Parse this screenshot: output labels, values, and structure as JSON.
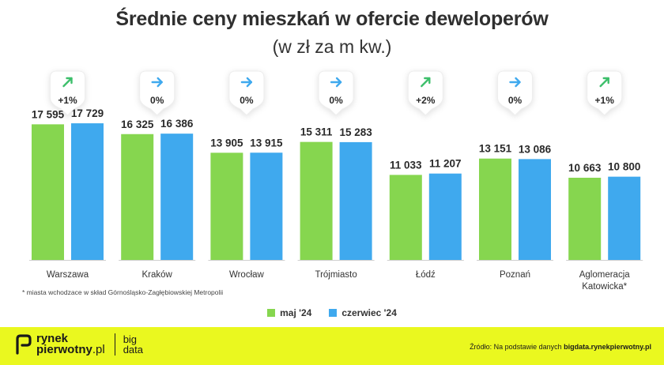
{
  "header": {
    "title": "Średnie ceny mieszkań w ofercie deweloperów",
    "subtitle": "(w zł za m kw.)"
  },
  "chart_data": {
    "type": "bar",
    "title": "Średnie ceny mieszkań w ofercie deweloperów",
    "subtitle": "(w zł za m kw.)",
    "categories": [
      "Warszawa",
      "Kraków",
      "Wrocław",
      "Trójmiasto",
      "Łódź",
      "Poznań",
      "Aglomeracja Katowicka*"
    ],
    "category_labels": [
      [
        "Warszawa"
      ],
      [
        "Kraków"
      ],
      [
        "Wrocław"
      ],
      [
        "Trójmiasto"
      ],
      [
        "Łódź"
      ],
      [
        "Poznań"
      ],
      [
        "Aglomeracja",
        "Katowicka*"
      ]
    ],
    "series": [
      {
        "name": "maj '24",
        "color": "#86d64f",
        "values": [
          17595,
          16325,
          13905,
          15311,
          11033,
          13151,
          10663
        ],
        "labels": [
          "17 595",
          "16 325",
          "13 905",
          "15 311",
          "11 033",
          "13 151",
          "10 663"
        ]
      },
      {
        "name": "czerwiec '24",
        "color": "#3fa9ee",
        "values": [
          17729,
          16386,
          13915,
          15283,
          11207,
          13086,
          10800
        ],
        "labels": [
          "17 729",
          "16 386",
          "13 915",
          "15 283",
          "11 207",
          "13 086",
          "10 800"
        ]
      }
    ],
    "changes": [
      "+1%",
      "0%",
      "0%",
      "0%",
      "+2%",
      "0%",
      "+1%"
    ],
    "change_directions": [
      "up",
      "flat",
      "flat",
      "flat",
      "up",
      "flat",
      "up"
    ],
    "ylim": [
      0,
      20000
    ],
    "grid": false,
    "legend_position": "bottom"
  },
  "footnote": "* miasta wchodzace w skład Górnośląsko-Zagłębiowskiej Metropolii",
  "legend": [
    {
      "label": "maj '24",
      "color": "#86d64f"
    },
    {
      "label": "czerwiec '24",
      "color": "#3fa9ee"
    }
  ],
  "footer": {
    "logo_line1": "rynek",
    "logo_line2": "pierwotny",
    "logo_tld": ".pl",
    "logo_big_line1": "big",
    "logo_big_line2": "data",
    "source_prefix": "Źródło: Na podstawie danych ",
    "source_site": "bigdata.rynekpierwotny.pl"
  },
  "colors": {
    "up_arrow": "#3dbf6b",
    "flat_arrow": "#3fa9ee",
    "footer_bg": "#eaf81f"
  }
}
